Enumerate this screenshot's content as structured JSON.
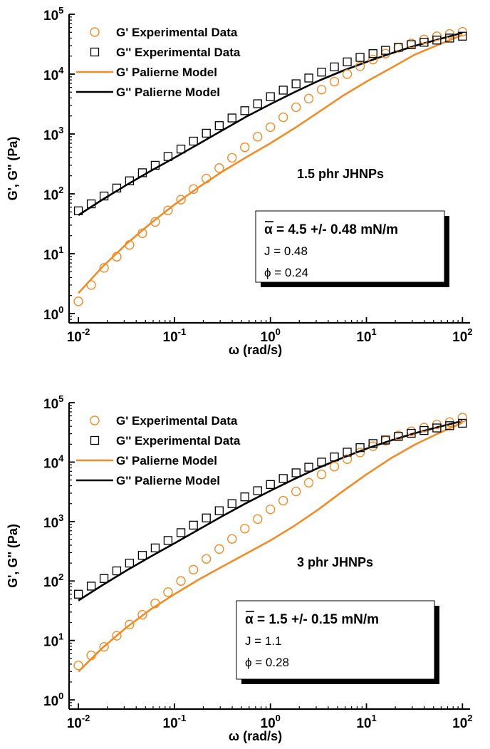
{
  "chart_data": [
    {
      "type": "scatter",
      "xlabel": "ω (rad/s)",
      "ylabel": "G', G'' (Pa)",
      "xscale": "log",
      "yscale": "log",
      "xlim": [
        0.008,
        120
      ],
      "ylim": [
        0.7,
        100000
      ],
      "xticks": [
        {
          "base": "10",
          "exp": "-2"
        },
        {
          "base": "10",
          "exp": "-1"
        },
        {
          "base": "10",
          "exp": "0"
        },
        {
          "base": "10",
          "exp": "1"
        },
        {
          "base": "10",
          "exp": "2"
        }
      ],
      "yticks": [
        {
          "base": "10",
          "exp": "0"
        },
        {
          "base": "10",
          "exp": "1"
        },
        {
          "base": "10",
          "exp": "2"
        },
        {
          "base": "10",
          "exp": "3"
        },
        {
          "base": "10",
          "exp": "4"
        },
        {
          "base": "10",
          "exp": "5"
        }
      ],
      "legend_position": "top-left",
      "annotation": "1.5 phr JHNPs",
      "info_box": {
        "alpha": "α = 4.5 +/- 0.48 mN/m",
        "j": "J = 0.48",
        "phi": "ϕ = 0.24"
      },
      "colors": {
        "gp": "#F28C28",
        "gpp": "#000000"
      },
      "series": [
        {
          "name": "G'  Experimental Data",
          "kind": "circle",
          "color": "#F28C28",
          "x": [
            0.01,
            0.0136,
            0.0185,
            0.0251,
            0.0341,
            0.0464,
            0.0631,
            0.0858,
            0.117,
            0.158,
            0.215,
            0.293,
            0.398,
            0.541,
            0.736,
            1.0,
            1.36,
            1.85,
            2.51,
            3.41,
            4.64,
            6.31,
            8.58,
            11.7,
            15.8,
            21.5,
            29.3,
            39.8,
            54.1,
            73.6,
            100
          ],
          "y": [
            1.6,
            3.0,
            5.8,
            8.9,
            14,
            22,
            34,
            53,
            80,
            120,
            180,
            270,
            400,
            600,
            900,
            1300,
            1900,
            2800,
            3900,
            5500,
            7500,
            10000,
            13500,
            17500,
            22000,
            27500,
            32500,
            38000,
            43000,
            47000,
            51000
          ]
        },
        {
          "name": "G'' Experimental Data",
          "kind": "square",
          "color": "#000000",
          "x": [
            0.01,
            0.0136,
            0.0185,
            0.0251,
            0.0341,
            0.0464,
            0.0631,
            0.0858,
            0.117,
            0.158,
            0.215,
            0.293,
            0.398,
            0.541,
            0.736,
            1.0,
            1.36,
            1.85,
            2.51,
            3.41,
            4.64,
            6.31,
            8.58,
            11.7,
            15.8,
            21.5,
            29.3,
            39.8,
            54.1,
            73.6,
            100
          ],
          "y": [
            52,
            68,
            92,
            125,
            165,
            225,
            300,
            420,
            560,
            760,
            1030,
            1380,
            1850,
            2450,
            3200,
            4200,
            5400,
            6900,
            8600,
            10800,
            13200,
            16000,
            19000,
            22000,
            25000,
            28000,
            31000,
            34000,
            37000,
            40000,
            43000
          ]
        },
        {
          "name": "G'  Palierne Model",
          "kind": "line",
          "color": "#F28C28",
          "x": [
            0.01,
            0.0178,
            0.0316,
            0.0562,
            0.1,
            0.178,
            0.316,
            0.562,
            1.0,
            1.78,
            3.16,
            5.62,
            10,
            17.8,
            31.6,
            56.2,
            100
          ],
          "y": [
            2.2,
            6.0,
            14.5,
            32,
            66,
            128,
            235,
            410,
            700,
            1250,
            2300,
            4300,
            7500,
            12500,
            21000,
            31000,
            45000
          ]
        },
        {
          "name": "G'' Palierne Model",
          "kind": "line",
          "color": "#000000",
          "x": [
            0.01,
            0.0178,
            0.0316,
            0.0562,
            0.1,
            0.178,
            0.316,
            0.562,
            1.0,
            1.78,
            3.16,
            5.62,
            10,
            17.8,
            31.6,
            56.2,
            100
          ],
          "y": [
            44,
            80,
            140,
            240,
            400,
            680,
            1150,
            1950,
            3150,
            5000,
            7700,
            11300,
            16000,
            22000,
            29500,
            38000,
            49000
          ]
        }
      ]
    },
    {
      "type": "scatter",
      "xlabel": "ω (rad/s)",
      "ylabel": "G', G'' (Pa)",
      "xscale": "log",
      "yscale": "log",
      "xlim": [
        0.008,
        120
      ],
      "ylim": [
        0.7,
        100000
      ],
      "xticks": [
        {
          "base": "10",
          "exp": "-2"
        },
        {
          "base": "10",
          "exp": "-1"
        },
        {
          "base": "10",
          "exp": "0"
        },
        {
          "base": "10",
          "exp": "1"
        },
        {
          "base": "10",
          "exp": "2"
        }
      ],
      "yticks": [
        {
          "base": "10",
          "exp": "0"
        },
        {
          "base": "10",
          "exp": "1"
        },
        {
          "base": "10",
          "exp": "2"
        },
        {
          "base": "10",
          "exp": "3"
        },
        {
          "base": "10",
          "exp": "4"
        },
        {
          "base": "10",
          "exp": "5"
        }
      ],
      "legend_position": "top-left",
      "annotation": "3 phr JHNPs",
      "info_box": {
        "alpha": "α = 1.5 +/- 0.15 mN/m",
        "j": "J = 1.1",
        "phi": "ϕ = 0.28"
      },
      "colors": {
        "gp": "#F28C28",
        "gpp": "#000000"
      },
      "series": [
        {
          "name": "G'  Experimental Data",
          "kind": "circle",
          "color": "#F28C28",
          "x": [
            0.01,
            0.0136,
            0.0185,
            0.0251,
            0.0341,
            0.0464,
            0.0631,
            0.0858,
            0.117,
            0.158,
            0.215,
            0.293,
            0.398,
            0.541,
            0.736,
            1.0,
            1.36,
            1.85,
            2.51,
            3.41,
            4.64,
            6.31,
            8.58,
            11.7,
            15.8,
            21.5,
            29.3,
            39.8,
            54.1,
            73.6,
            100
          ],
          "y": [
            3.8,
            5.6,
            7.8,
            12,
            18.5,
            27,
            42,
            65,
            100,
            155,
            235,
            345,
            510,
            760,
            1100,
            1600,
            2250,
            3200,
            4500,
            6200,
            8400,
            11200,
            14500,
            18500,
            23000,
            28000,
            33000,
            38000,
            43000,
            47000,
            56000
          ]
        },
        {
          "name": "G'' Experimental Data",
          "kind": "square",
          "color": "#000000",
          "x": [
            0.01,
            0.0136,
            0.0185,
            0.0251,
            0.0341,
            0.0464,
            0.0631,
            0.0858,
            0.117,
            0.158,
            0.215,
            0.293,
            0.398,
            0.541,
            0.736,
            1.0,
            1.36,
            1.85,
            2.51,
            3.41,
            4.64,
            6.31,
            8.58,
            11.7,
            15.8,
            21.5,
            29.3,
            39.8,
            54.1,
            73.6,
            100
          ],
          "y": [
            60,
            82,
            110,
            148,
            200,
            270,
            360,
            480,
            650,
            870,
            1150,
            1520,
            2000,
            2600,
            3300,
            4200,
            5300,
            6600,
            8200,
            10000,
            12200,
            14700,
            17500,
            20500,
            23500,
            27000,
            30500,
            34000,
            37500,
            41000,
            45000
          ]
        },
        {
          "name": "G'  Palierne Model",
          "kind": "line",
          "color": "#F28C28",
          "x": [
            0.01,
            0.0178,
            0.0316,
            0.0562,
            0.1,
            0.178,
            0.316,
            0.562,
            1.0,
            1.78,
            3.16,
            5.62,
            10,
            17.8,
            31.6,
            56.2,
            100
          ],
          "y": [
            3.0,
            7.5,
            16.5,
            33,
            60,
            105,
            175,
            290,
            480,
            850,
            1600,
            3200,
            6200,
            11500,
            19500,
            30500,
            46000
          ]
        },
        {
          "name": "G'' Palierne Model",
          "kind": "line",
          "color": "#000000",
          "x": [
            0.01,
            0.0178,
            0.0316,
            0.0562,
            0.1,
            0.178,
            0.316,
            0.562,
            1.0,
            1.78,
            3.16,
            5.62,
            10,
            17.8,
            31.6,
            56.2,
            100
          ],
          "y": [
            47,
            85,
            150,
            255,
            430,
            730,
            1230,
            2050,
            3300,
            5200,
            8000,
            11800,
            16800,
            23000,
            30500,
            39000,
            49000
          ]
        }
      ]
    }
  ]
}
